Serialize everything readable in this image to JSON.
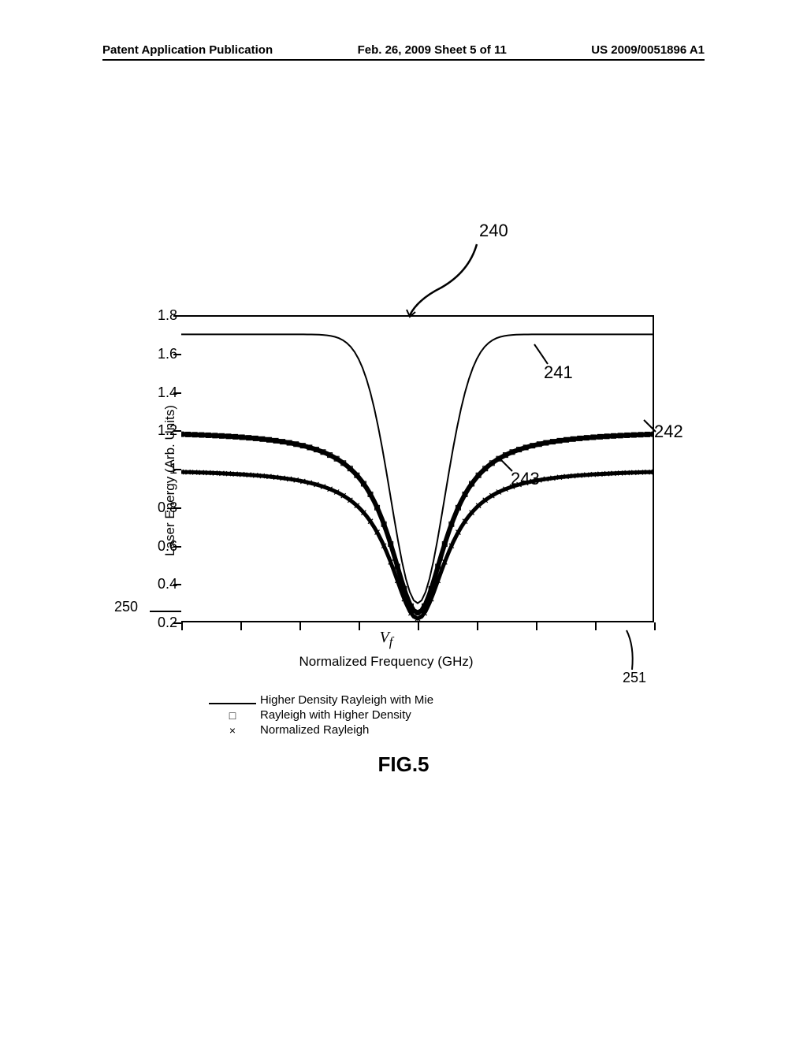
{
  "header": {
    "left": "Patent Application Publication",
    "center": "Feb. 26, 2009  Sheet 5 of 11",
    "right": "US 2009/0051896 A1"
  },
  "callouts": {
    "c240": "240",
    "c241": "241",
    "c242": "242",
    "c243": "243",
    "c250": "250",
    "c251": "251"
  },
  "chart": {
    "type": "line",
    "y_label": "Laser Energy (Arb. Units)",
    "x_label": "Normalized Frequency (GHz)",
    "x_center_label": "Vf",
    "ylim": [
      0.2,
      1.8
    ],
    "y_ticks": [
      0.2,
      0.4,
      0.6,
      0.8,
      1,
      1.2,
      1.4,
      1.6,
      1.8
    ],
    "y_tick_labels": [
      "0.2",
      "0.4",
      "0.6",
      "0.8",
      "1",
      "1.2",
      "1.4",
      "1.6",
      "1.8"
    ],
    "x_tick_count": 9,
    "stroke_color": "#000000",
    "background_color": "#ffffff",
    "series": [
      {
        "name": "Higher Density Rayleigh with Mie",
        "marker": "line",
        "baseline": 1.7,
        "dip_min": 0.3,
        "line_width": 2
      },
      {
        "name": "Rayleigh with Higher Density",
        "marker": "square",
        "baseline": 1.2,
        "dip_min": 0.25,
        "line_width": 6
      },
      {
        "name": "Normalized Rayleigh",
        "marker": "cross",
        "baseline": 1.0,
        "dip_min": 0.22,
        "line_width": 5
      }
    ]
  },
  "legend": {
    "items": [
      {
        "symbol": "line",
        "label": "Higher Density Rayleigh with Mie"
      },
      {
        "symbol": "□",
        "label": "Rayleigh with Higher Density"
      },
      {
        "symbol": "×",
        "label": "Normalized Rayleigh"
      }
    ]
  },
  "figure_title": "FIG.5"
}
